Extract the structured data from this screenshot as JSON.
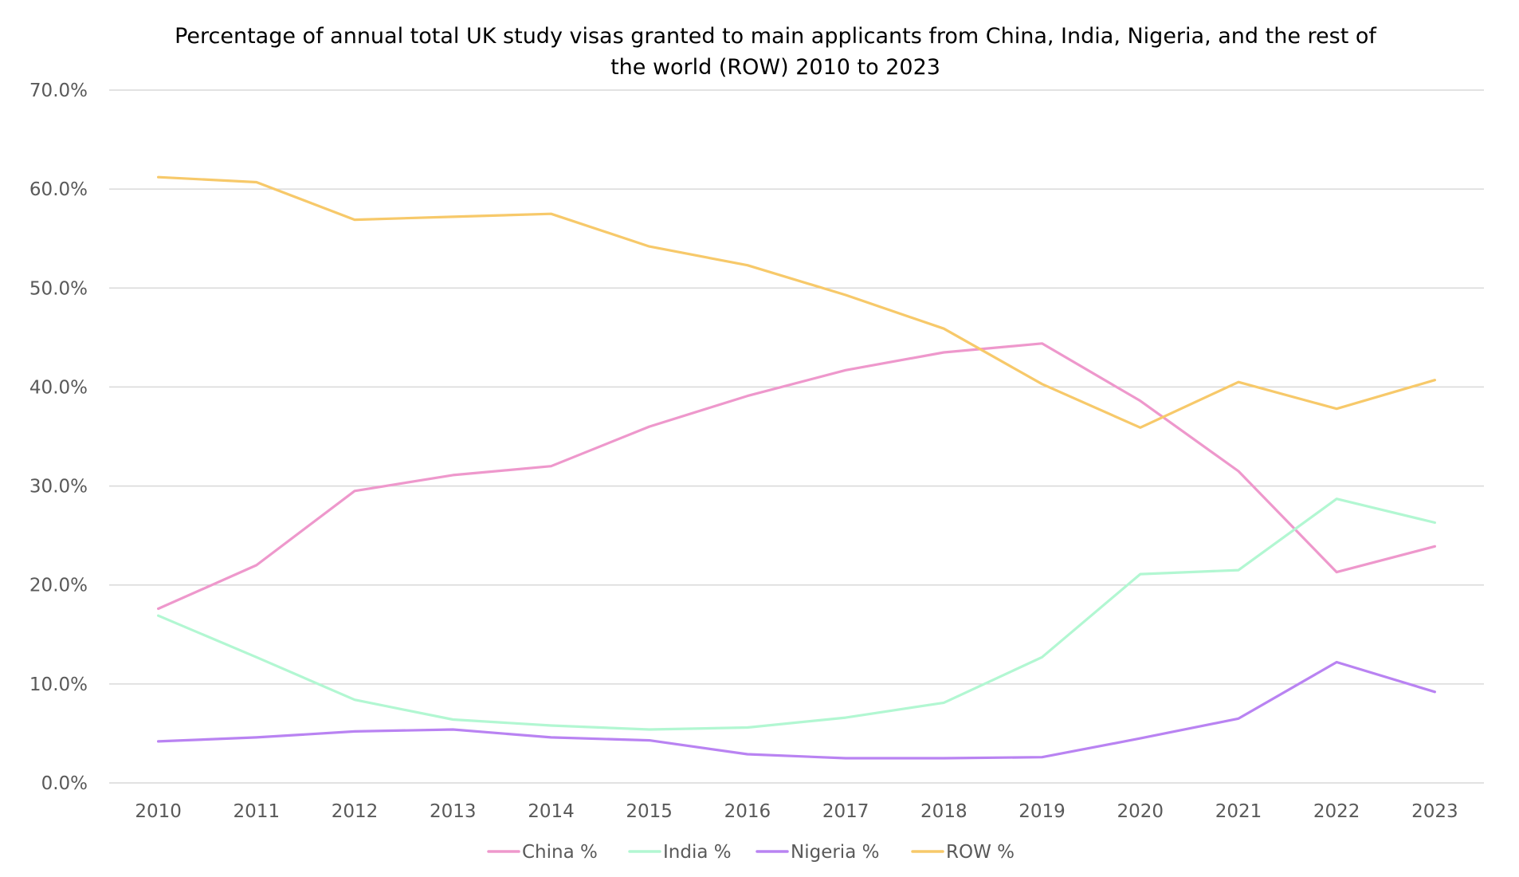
{
  "chart_data": {
    "type": "line",
    "title": "Percentage of annual total UK study visas granted to main applicants from China, India, Nigeria, and the rest of the world (ROW) 2010 to 2023",
    "title_lines": [
      "Percentage of annual total UK study visas granted to main applicants from China, India, Nigeria, and the rest of",
      "the world (ROW) 2010 to 2023"
    ],
    "xlabel": "",
    "ylabel": "",
    "categories": [
      "2010",
      "2011",
      "2012",
      "2013",
      "2014",
      "2015",
      "2016",
      "2017",
      "2018",
      "2019",
      "2020",
      "2021",
      "2022",
      "2023"
    ],
    "ylim": [
      0,
      70
    ],
    "y_ticks": [
      0,
      10,
      20,
      30,
      40,
      50,
      60,
      70
    ],
    "y_tick_labels": [
      "0.0%",
      "10.0%",
      "20.0%",
      "30.0%",
      "40.0%",
      "50.0%",
      "60.0%",
      "70.0%"
    ],
    "grid": true,
    "legend_position": "bottom",
    "series": [
      {
        "name": "China %",
        "color": "#EE98CC",
        "values": [
          17.6,
          22.0,
          29.5,
          31.1,
          32.0,
          36.0,
          39.1,
          41.7,
          43.5,
          44.4,
          38.6,
          31.5,
          21.3,
          23.9
        ]
      },
      {
        "name": "India %",
        "color": "#B2F7D2",
        "values": [
          16.9,
          12.7,
          8.4,
          6.4,
          5.8,
          5.4,
          5.6,
          6.6,
          8.1,
          12.7,
          21.1,
          21.5,
          28.7,
          26.3
        ]
      },
      {
        "name": "Nigeria %",
        "color": "#B983F2",
        "values": [
          4.2,
          4.6,
          5.2,
          5.4,
          4.6,
          4.3,
          2.9,
          2.5,
          2.5,
          2.6,
          4.5,
          6.5,
          12.2,
          9.2
        ]
      },
      {
        "name": "ROW %",
        "color": "#F7C96A",
        "values": [
          61.2,
          60.7,
          56.9,
          57.2,
          57.5,
          54.2,
          52.3,
          49.3,
          45.9,
          40.3,
          35.9,
          40.5,
          37.8,
          40.7
        ]
      }
    ]
  }
}
